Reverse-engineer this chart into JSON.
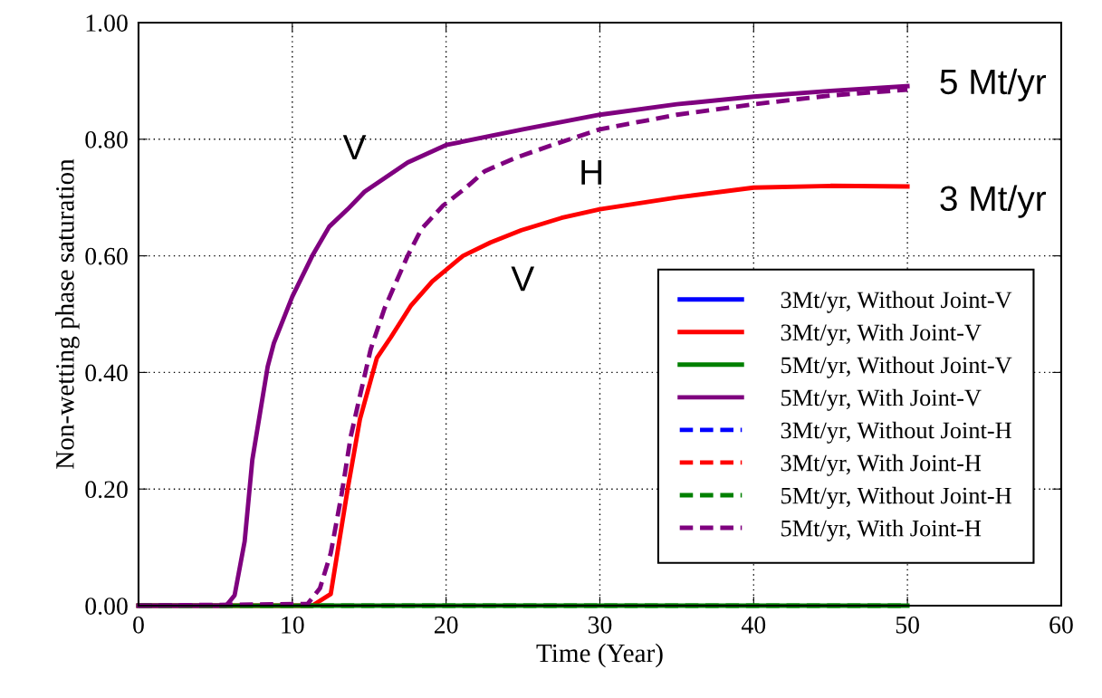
{
  "chart_data": {
    "type": "line",
    "xlabel": "Time (Year)",
    "ylabel": "Non-wetting phase saturation",
    "xlim": [
      0,
      60
    ],
    "xticks": [
      0,
      10,
      20,
      30,
      40,
      50,
      60
    ],
    "ylim": [
      0,
      1
    ],
    "yticks": [
      {
        "value": 0,
        "label": "0.00"
      },
      {
        "value": 0.2,
        "label": "0.20"
      },
      {
        "value": 0.4,
        "label": "0.40"
      },
      {
        "value": 0.6,
        "label": "0.60"
      },
      {
        "value": 0.8,
        "label": "0.80"
      },
      {
        "value": 1,
        "label": "1.00"
      }
    ],
    "grid": true,
    "legend": "bottom right",
    "series": [
      {
        "name": "3Mt/yr, Without Joint-V",
        "color": "#0000ff",
        "line_style": "solid"
      },
      {
        "name": "3Mt/yr, With Joint-V",
        "color": "#ff0000",
        "line_style": "solid",
        "x": [
          0,
          11.3,
          12.5,
          13.6,
          14.4,
          15.5,
          16.4,
          17.7,
          19.1,
          21.1,
          22.9,
          24.9,
          27.5,
          30,
          35,
          40,
          45,
          50
        ],
        "values": [
          0,
          0,
          0.02,
          0.2,
          0.32,
          0.425,
          0.46,
          0.514,
          0.556,
          0.6,
          0.623,
          0.644,
          0.665,
          0.68,
          0.7,
          0.717,
          0.72,
          0.719
        ]
      },
      {
        "name": "5Mt/yr, Without Joint-V",
        "color": "#008000",
        "line_style": "solid",
        "x": [
          0,
          10,
          20,
          30,
          40,
          50
        ],
        "values": [
          0,
          0,
          0,
          0,
          0,
          0
        ]
      },
      {
        "name": "5Mt/yr, With Joint-V",
        "color": "#7f007f",
        "line_style": "solid",
        "x": [
          0,
          5.7,
          6.25,
          6.9,
          7.4,
          7.9,
          8.4,
          8.8,
          10,
          11.3,
          12.4,
          13.6,
          14.7,
          17.5,
          20,
          25,
          30,
          35,
          40,
          45,
          50
        ],
        "values": [
          0,
          0,
          0.018,
          0.11,
          0.25,
          0.33,
          0.41,
          0.45,
          0.53,
          0.6,
          0.65,
          0.68,
          0.71,
          0.76,
          0.79,
          0.817,
          0.842,
          0.86,
          0.873,
          0.883,
          0.891
        ]
      },
      {
        "name": "3Mt/yr, Without Joint-H",
        "color": "#0000ff",
        "line_style": "dashed"
      },
      {
        "name": "3Mt/yr, With Joint-H",
        "color": "#ff0000",
        "line_style": "dashed"
      },
      {
        "name": "5Mt/yr, Without Joint-H",
        "color": "#008000",
        "line_style": "dashed",
        "x": [
          0,
          10,
          20,
          30,
          40,
          50
        ],
        "values": [
          0,
          0,
          0,
          0,
          0,
          0
        ]
      },
      {
        "name": "5Mt/yr, With Joint-H",
        "color": "#7f007f",
        "line_style": "dashed",
        "x": [
          0,
          11,
          11.8,
          12.5,
          13.2,
          13.8,
          14.4,
          15.1,
          16,
          17.5,
          18.4,
          19.8,
          21.3,
          22.5,
          24.5,
          26.9,
          30,
          35,
          40,
          45,
          50
        ],
        "values": [
          0,
          0.003,
          0.03,
          0.09,
          0.19,
          0.29,
          0.36,
          0.44,
          0.51,
          0.6,
          0.646,
          0.686,
          0.717,
          0.745,
          0.768,
          0.79,
          0.817,
          0.842,
          0.86,
          0.875,
          0.885
        ]
      }
    ],
    "annotations": [
      {
        "text": "V",
        "x": 14.7,
        "y": 0.71
      },
      {
        "text": "H",
        "x": 29.7,
        "y": 0.818
      },
      {
        "text": "V",
        "x": 24.9,
        "y": 0.644
      },
      {
        "text": "5 Mt/yr",
        "x": 50,
        "y": 0.891
      },
      {
        "text": "3 Mt/yr",
        "x": 50,
        "y": 0.719
      }
    ]
  }
}
